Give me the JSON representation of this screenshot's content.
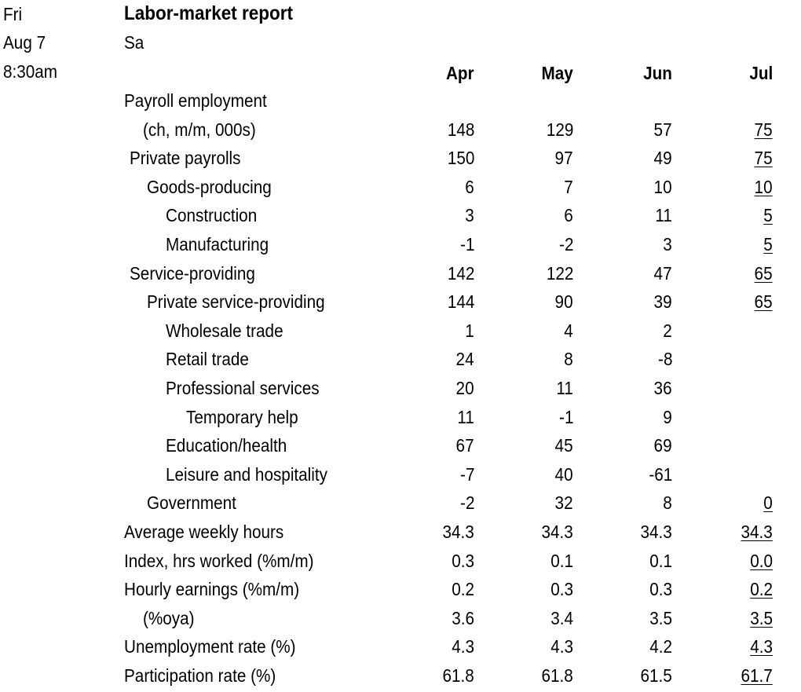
{
  "meta": {
    "day": "Fri",
    "date": "Aug 7",
    "time": "8:30am",
    "title": "Labor-market report",
    "source": "Sa"
  },
  "columns": [
    "Apr",
    "May",
    "Jun",
    "Jul"
  ],
  "rows": [
    {
      "label": "Payroll employment",
      "indent": 0,
      "values": [
        "",
        "",
        "",
        ""
      ]
    },
    {
      "label": "(ch, m/m, 000s)",
      "indent": 1,
      "values": [
        "148",
        "129",
        "57",
        "75"
      ]
    },
    {
      "label": "Private payrolls",
      "indent": 0.3,
      "values": [
        "150",
        "97",
        "49",
        "75"
      ]
    },
    {
      "label": "Goods-producing",
      "indent": 1.2,
      "values": [
        "6",
        "7",
        "10",
        "10"
      ]
    },
    {
      "label": "Construction",
      "indent": 2.2,
      "values": [
        "3",
        "6",
        "11",
        "5"
      ]
    },
    {
      "label": "Manufacturing",
      "indent": 2.2,
      "values": [
        "-1",
        "-2",
        "3",
        "5"
      ]
    },
    {
      "label": "Service-providing",
      "indent": 0.3,
      "values": [
        "142",
        "122",
        "47",
        "65"
      ]
    },
    {
      "label": "Private service-providing",
      "indent": 1.2,
      "values": [
        "144",
        "90",
        "39",
        "65"
      ]
    },
    {
      "label": "Wholesale trade",
      "indent": 2.2,
      "values": [
        "1",
        "4",
        "2",
        ""
      ]
    },
    {
      "label": "Retail trade",
      "indent": 2.2,
      "values": [
        "24",
        "8",
        "-8",
        ""
      ]
    },
    {
      "label": "Professional services",
      "indent": 2.2,
      "values": [
        "20",
        "11",
        "36",
        ""
      ]
    },
    {
      "label": "Temporary help",
      "indent": 3.3,
      "values": [
        "11",
        "-1",
        "9",
        ""
      ]
    },
    {
      "label": "Education/health",
      "indent": 2.2,
      "values": [
        "67",
        "45",
        "69",
        ""
      ]
    },
    {
      "label": "Leisure and hospitality",
      "indent": 2.2,
      "values": [
        "-7",
        "40",
        "-61",
        ""
      ]
    },
    {
      "label": "Government",
      "indent": 1.2,
      "values": [
        "-2",
        "32",
        "8",
        "0"
      ]
    },
    {
      "label": "Average weekly hours",
      "indent": 0,
      "values": [
        "34.3",
        "34.3",
        "34.3",
        "34.3"
      ]
    },
    {
      "label": "Index, hrs worked (%m/m)",
      "indent": 0,
      "values": [
        "0.3",
        "0.1",
        "0.1",
        "0.0"
      ]
    },
    {
      "label": "Hourly earnings (%m/m)",
      "indent": 0,
      "values": [
        "0.2",
        "0.3",
        "0.3",
        "0.2"
      ]
    },
    {
      "label": "(%oya)",
      "indent": 1,
      "values": [
        "3.6",
        "3.4",
        "3.5",
        "3.5"
      ]
    },
    {
      "label": "Unemployment rate (%)",
      "indent": 0,
      "values": [
        "4.3",
        "4.3",
        "4.2",
        "4.3"
      ]
    },
    {
      "label": "Participation rate (%)",
      "indent": 0,
      "values": [
        "61.8",
        "61.8",
        "61.5",
        "61.7"
      ]
    }
  ]
}
